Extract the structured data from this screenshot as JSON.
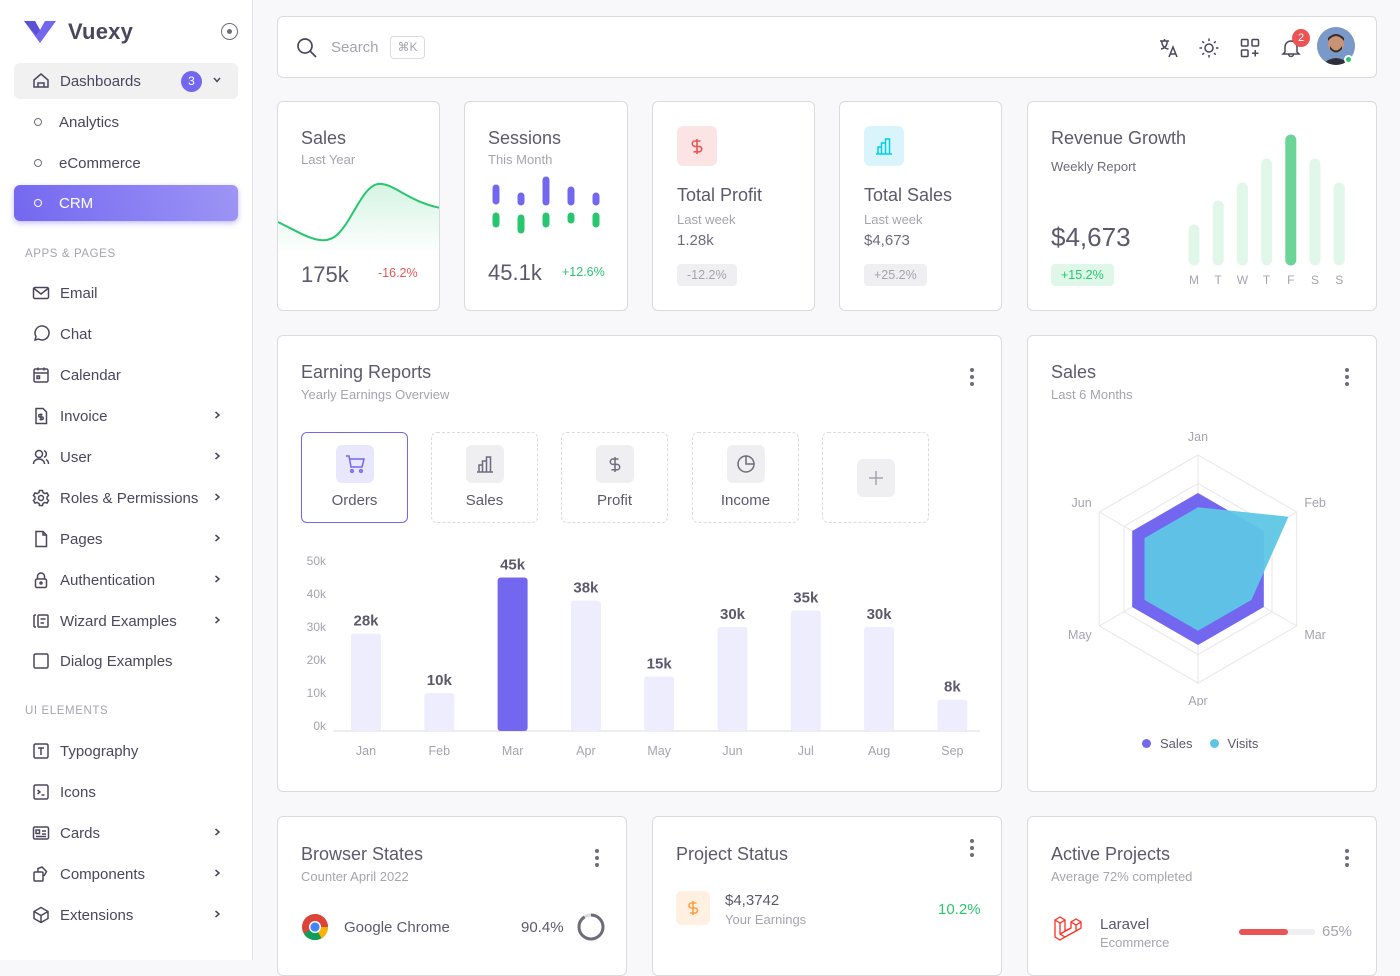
{
  "brand": {
    "name": "Vuexy"
  },
  "sidebar": {
    "dashboards": {
      "label": "Dashboards",
      "badge": "3"
    },
    "dash_items": [
      {
        "label": "Analytics"
      },
      {
        "label": "eCommerce"
      },
      {
        "label": "CRM"
      }
    ],
    "section_apps": "APPS & PAGES",
    "apps": [
      {
        "label": "Email",
        "icon": "mail-icon"
      },
      {
        "label": "Chat",
        "icon": "chat-icon"
      },
      {
        "label": "Calendar",
        "icon": "calendar-icon"
      },
      {
        "label": "Invoice",
        "icon": "invoice-icon"
      },
      {
        "label": "User",
        "icon": "users-icon"
      },
      {
        "label": "Roles & Permissions",
        "icon": "settings-icon"
      },
      {
        "label": "Pages",
        "icon": "file-icon"
      },
      {
        "label": "Authentication",
        "icon": "lock-icon"
      },
      {
        "label": "Wizard Examples",
        "icon": "wizard-icon"
      },
      {
        "label": "Dialog Examples",
        "icon": "square-icon"
      }
    ],
    "section_ui": "UI ELEMENTS",
    "ui": [
      {
        "label": "Typography",
        "icon": "typography-icon"
      },
      {
        "label": "Icons",
        "icon": "terminal-icon"
      },
      {
        "label": "Cards",
        "icon": "id-card-icon"
      },
      {
        "label": "Components",
        "icon": "components-icon"
      },
      {
        "label": "Extensions",
        "icon": "box-icon"
      }
    ]
  },
  "topbar": {
    "search_placeholder": "Search",
    "shortcut": "⌘K",
    "notifications": "2"
  },
  "stats": {
    "sales": {
      "title": "Sales",
      "subtitle": "Last Year",
      "value": "175k",
      "change": "-16.2%"
    },
    "sessions": {
      "title": "Sessions",
      "subtitle": "This Month",
      "value": "45.1k",
      "change": "+12.6%"
    },
    "profit": {
      "title": "Total Profit",
      "subtitle": "Last week",
      "value": "1.28k",
      "change": "-12.2%"
    },
    "total_sales": {
      "title": "Total Sales",
      "subtitle": "Last week",
      "value": "$4,673",
      "change": "+25.2%"
    }
  },
  "revenue": {
    "title": "Revenue Growth",
    "subtitle": "Weekly Report",
    "value": "$4,673",
    "change": "+15.2%",
    "days": [
      "M",
      "T",
      "W",
      "T",
      "F",
      "S",
      "S"
    ],
    "levels": [
      0.25,
      0.45,
      0.6,
      0.8,
      1.0,
      0.8,
      0.6
    ]
  },
  "earning": {
    "title": "Earning Reports",
    "subtitle": "Yearly Earnings Overview",
    "tabs": [
      {
        "label": "Orders"
      },
      {
        "label": "Sales"
      },
      {
        "label": "Profit"
      },
      {
        "label": "Income"
      }
    ]
  },
  "chart_data": [
    {
      "type": "bar",
      "categories": [
        "Jan",
        "Feb",
        "Mar",
        "Apr",
        "May",
        "Jun",
        "Jul",
        "Aug",
        "Sep"
      ],
      "values": [
        28,
        10,
        45,
        38,
        15,
        30,
        35,
        30,
        8
      ],
      "value_labels": [
        "28k",
        "10k",
        "45k",
        "38k",
        "15k",
        "30k",
        "35k",
        "30k",
        "8k"
      ],
      "y_ticks": [
        "0k",
        "10k",
        "20k",
        "30k",
        "40k",
        "50k"
      ],
      "ylim": [
        0,
        50
      ],
      "highlight": 2,
      "colors": {
        "bar": "#eeedfd",
        "highlight": "#7367f0"
      }
    },
    {
      "type": "radar",
      "title": "Sales",
      "subtitle": "Last 6 Months",
      "categories": [
        "Jan",
        "Feb",
        "Mar",
        "Apr",
        "May",
        "Jun"
      ],
      "series": [
        {
          "name": "Sales",
          "values": [
            80,
            80,
            80,
            80,
            80,
            80
          ],
          "color": "#7367f0"
        },
        {
          "name": "Visits",
          "values": [
            65,
            110,
            65,
            65,
            65,
            65
          ],
          "color": "#5ec6e5"
        }
      ],
      "rmax": 120
    }
  ],
  "browser": {
    "title": "Browser States",
    "subtitle": "Counter April 2022",
    "name": "Google Chrome",
    "value": "90.4%"
  },
  "project": {
    "title": "Project Status",
    "value": "$4,3742",
    "subtitle": "Your Earnings",
    "change": "10.2%"
  },
  "active": {
    "title": "Active Projects",
    "subtitle": "Average 72% completed",
    "name": "Laravel",
    "category": "Ecommerce",
    "value": "65%",
    "progress": 0.65
  }
}
